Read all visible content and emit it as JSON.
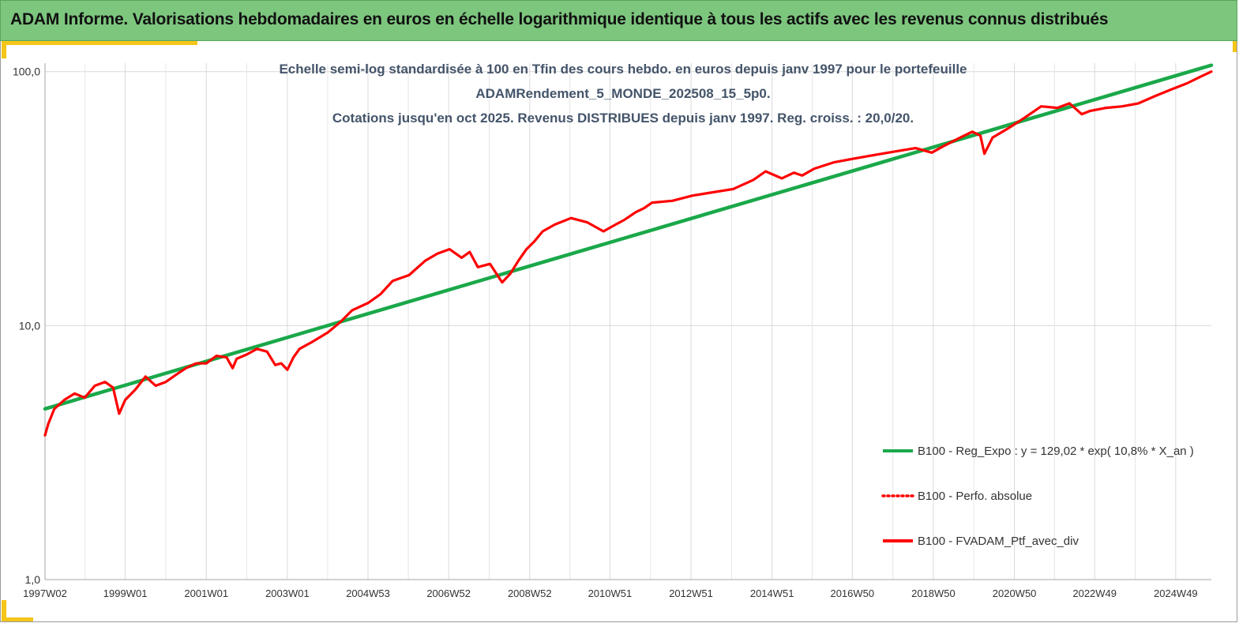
{
  "header": {
    "title": "ADAM Informe. Valorisations hebdomadaires en euros en échelle logarithmique identique à tous les actifs avec les revenus connus distribués"
  },
  "colors": {
    "header_bg": "#7dc67e",
    "accent": "#f5c518",
    "regression": "#1aa84a",
    "portfolio": "#ff0000",
    "title_text": "#44546a"
  },
  "chart_data": {
    "type": "line",
    "y_scale": "log",
    "ylim": [
      1,
      108
    ],
    "grid": "vertical gridlines at each x tick, horizontal gridlines at decades",
    "legend_position": "right",
    "title_lines": [
      "Echelle semi-log standardisée à 100 en Tfin des cours hebdo.  en euros depuis janv 1997 pour le portefeuille",
      "ADAMRendement_5_MONDE_202508_15_5p0.",
      "Cotations  jusqu'en oct 2025. Revenus DISTRIBUES depuis janv 1997. Reg. croiss. : 20,0/20."
    ],
    "y_ticks": [
      {
        "value": 100,
        "label": "100,0"
      },
      {
        "value": 10,
        "label": "10,0"
      },
      {
        "value": 1,
        "label": "1,0"
      }
    ],
    "x_ticks": [
      {
        "x": 1997.02,
        "label": "1997W02"
      },
      {
        "x": 1999.0,
        "label": "1999W01"
      },
      {
        "x": 2001.0,
        "label": "2001W01"
      },
      {
        "x": 2003.0,
        "label": "2003W01"
      },
      {
        "x": 2004.99,
        "label": "2004W53"
      },
      {
        "x": 2006.98,
        "label": "2006W52"
      },
      {
        "x": 2008.98,
        "label": "2008W52"
      },
      {
        "x": 2010.96,
        "label": "2010W51"
      },
      {
        "x": 2012.96,
        "label": "2012W51"
      },
      {
        "x": 2014.96,
        "label": "2014W51"
      },
      {
        "x": 2016.94,
        "label": "2016W50"
      },
      {
        "x": 2018.94,
        "label": "2018W50"
      },
      {
        "x": 2020.94,
        "label": "2020W50"
      },
      {
        "x": 2022.92,
        "label": "2022W49"
      },
      {
        "x": 2024.92,
        "label": "2024W49"
      }
    ],
    "xlim": [
      1997.02,
      2025.8
    ],
    "series": [
      {
        "name": "B100 - Reg_Expo : y = 129,02 * exp( 10,8% *  X_an )",
        "style": "solid-thick",
        "color": "#1aa84a",
        "x": [
          1997.02,
          2025.8
        ],
        "values": [
          4.7,
          106
        ]
      },
      {
        "name": "B100 - Perfo. absolue",
        "style": "dotted",
        "color": "#ff0000",
        "x": [],
        "values": []
      },
      {
        "name": "B100 - FVADAM_Ptf_avec_div",
        "style": "solid",
        "color": "#ff0000",
        "x": [
          1997.02,
          1997.1,
          1997.25,
          1997.5,
          1997.75,
          1998.0,
          1998.25,
          1998.5,
          1998.7,
          1998.85,
          1999.0,
          1999.25,
          1999.5,
          1999.75,
          2000.0,
          2000.25,
          2000.5,
          2000.75,
          2001.0,
          2001.25,
          2001.5,
          2001.65,
          2001.75,
          2002.0,
          2002.25,
          2002.5,
          2002.7,
          2002.85,
          2003.0,
          2003.15,
          2003.3,
          2003.6,
          2004.0,
          2004.3,
          2004.6,
          2005.0,
          2005.3,
          2005.6,
          2006.0,
          2006.4,
          2006.7,
          2007.0,
          2007.3,
          2007.5,
          2007.7,
          2008.0,
          2008.3,
          2008.5,
          2008.7,
          2008.9,
          2009.1,
          2009.3,
          2009.6,
          2010.0,
          2010.4,
          2010.8,
          2011.1,
          2011.3,
          2011.6,
          2011.8,
          2012.0,
          2012.5,
          2013.0,
          2013.5,
          2014.0,
          2014.5,
          2014.8,
          2015.2,
          2015.5,
          2015.7,
          2016.0,
          2016.5,
          2017.0,
          2017.5,
          2018.0,
          2018.5,
          2018.9,
          2019.2,
          2019.6,
          2019.9,
          2020.1,
          2020.2,
          2020.4,
          2020.8,
          2021.2,
          2021.6,
          2022.0,
          2022.3,
          2022.6,
          2022.8,
          2023.2,
          2023.6,
          2024.0,
          2024.4,
          2024.8,
          2025.2,
          2025.5,
          2025.8
        ],
        "values": [
          3.7,
          4.1,
          4.7,
          5.1,
          5.4,
          5.2,
          5.8,
          6.0,
          5.7,
          4.5,
          5.1,
          5.6,
          6.3,
          5.8,
          6.0,
          6.4,
          6.8,
          7.1,
          7.1,
          7.6,
          7.5,
          6.8,
          7.4,
          7.7,
          8.1,
          7.9,
          7.0,
          7.1,
          6.7,
          7.5,
          8.1,
          8.6,
          9.4,
          10.3,
          11.5,
          12.3,
          13.3,
          15.0,
          15.8,
          18.0,
          19.2,
          20.0,
          18.5,
          19.5,
          17.0,
          17.5,
          14.8,
          16.0,
          18.0,
          20.0,
          21.5,
          23.5,
          25.0,
          26.5,
          25.5,
          23.5,
          25.0,
          26.0,
          28.0,
          29.0,
          30.5,
          31.0,
          32.5,
          33.5,
          34.5,
          37.5,
          40.5,
          38.0,
          40.0,
          39.0,
          41.5,
          44.0,
          45.5,
          47.0,
          48.5,
          50.0,
          48.0,
          51.0,
          55.0,
          58.0,
          56.0,
          47.5,
          55.0,
          60.0,
          66.0,
          73.0,
          72.0,
          75.0,
          68.0,
          70.0,
          72.0,
          73.0,
          75.0,
          80.0,
          85.0,
          90.0,
          95.0,
          100.0
        ]
      }
    ]
  }
}
